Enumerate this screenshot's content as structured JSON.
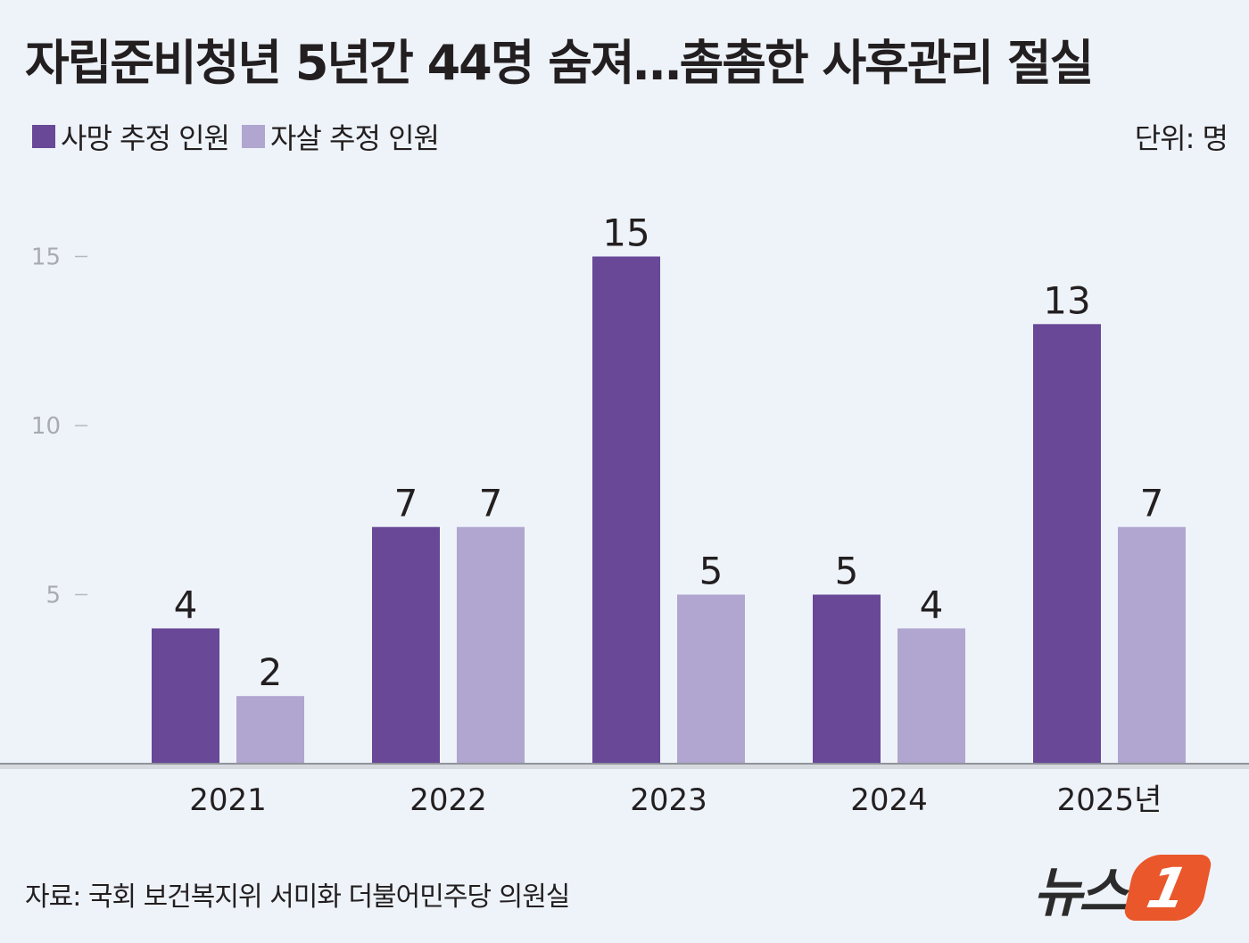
{
  "title": "자립준비청년 5년간 44명 숨져…촘촘한 사후관리 절실",
  "legend": [
    {
      "label": "사망 추정 인원",
      "color": "#684897"
    },
    {
      "label": "자살 추정 인원",
      "color": "#b0a6d0"
    }
  ],
  "unit": "단위: 명",
  "source": "자료: 국회 보건복지위 서미화 더불어민주당 의원실",
  "logo": {
    "text": "뉴스",
    "badge": "1"
  },
  "chart_data": {
    "type": "bar",
    "categories": [
      "2021",
      "2022",
      "2023",
      "2024",
      "2025년"
    ],
    "series": [
      {
        "name": "사망 추정 인원",
        "values": [
          4,
          7,
          15,
          5,
          13
        ],
        "color": "#684897"
      },
      {
        "name": "자살 추정 인원",
        "values": [
          2,
          7,
          5,
          4,
          7
        ],
        "color": "#b0a6d0"
      }
    ],
    "yticks": [
      5,
      10,
      15
    ],
    "ylim": [
      0,
      15
    ],
    "grid": false,
    "legend_position": "top-left"
  }
}
